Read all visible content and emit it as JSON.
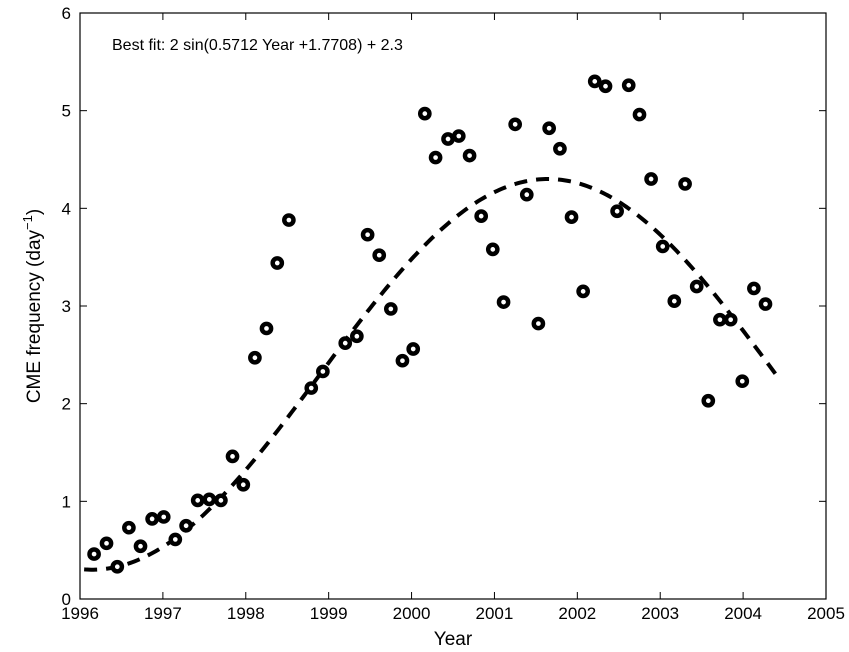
{
  "chart_data": {
    "type": "scatter",
    "title": "",
    "xlabel": "Year",
    "ylabel": "CME frequency (day",
    "ylabel_superscript": "−1",
    "ylabel_suffix": ")",
    "xlim": [
      1996,
      2005
    ],
    "ylim": [
      0,
      6
    ],
    "xticks": [
      1996,
      1997,
      1998,
      1999,
      2000,
      2001,
      2002,
      2003,
      2004,
      2005
    ],
    "yticks": [
      0,
      1,
      2,
      3,
      4,
      5,
      6
    ],
    "grid": false,
    "annotation": "Best fit: 2 sin(0.5712 Year +1.7708) + 2.3",
    "series": [
      {
        "marker": "open-circle",
        "x": [
          1996.17,
          1996.32,
          1996.45,
          1996.59,
          1996.73,
          1996.87,
          1997.01,
          1997.15,
          1997.28,
          1997.42,
          1997.56,
          1997.7,
          1997.84,
          1997.97,
          1998.11,
          1998.25,
          1998.38,
          1998.52,
          1998.79,
          1998.93,
          1999.2,
          1999.34,
          1999.47,
          1999.61,
          1999.75,
          1999.89,
          2000.02,
          2000.16,
          2000.29,
          2000.44,
          2000.57,
          2000.7,
          2000.84,
          2000.98,
          2001.11,
          2001.25,
          2001.39,
          2001.53,
          2001.66,
          2001.79,
          2001.93,
          2002.07,
          2002.21,
          2002.34,
          2002.48,
          2002.62,
          2002.75,
          2002.89,
          2003.03,
          2003.17,
          2003.3,
          2003.44,
          2003.58,
          2003.72,
          2003.85,
          2003.99,
          2004.13,
          2004.27
        ],
        "y": [
          0.46,
          0.57,
          0.33,
          0.73,
          0.54,
          0.82,
          0.84,
          0.61,
          0.75,
          1.01,
          1.02,
          1.01,
          1.46,
          1.17,
          2.47,
          2.77,
          3.44,
          3.88,
          2.16,
          2.33,
          2.62,
          2.69,
          3.73,
          3.52,
          2.97,
          2.44,
          2.56,
          4.97,
          4.52,
          4.71,
          4.74,
          4.54,
          3.92,
          3.58,
          3.04,
          4.86,
          4.14,
          2.82,
          4.82,
          4.61,
          3.91,
          3.15,
          5.3,
          5.25,
          3.97,
          5.26,
          4.96,
          4.3,
          3.61,
          3.05,
          4.25,
          3.2,
          2.03,
          2.86,
          2.86,
          2.23,
          3.18,
          3.02
        ]
      },
      {
        "marker": "dashed-line",
        "fit": {
          "amplitude": 2,
          "frequency": 0.5712,
          "phase": 1.7708,
          "offset": 2.3
        },
        "x_range": [
          1996.05,
          2004.4
        ]
      }
    ]
  }
}
